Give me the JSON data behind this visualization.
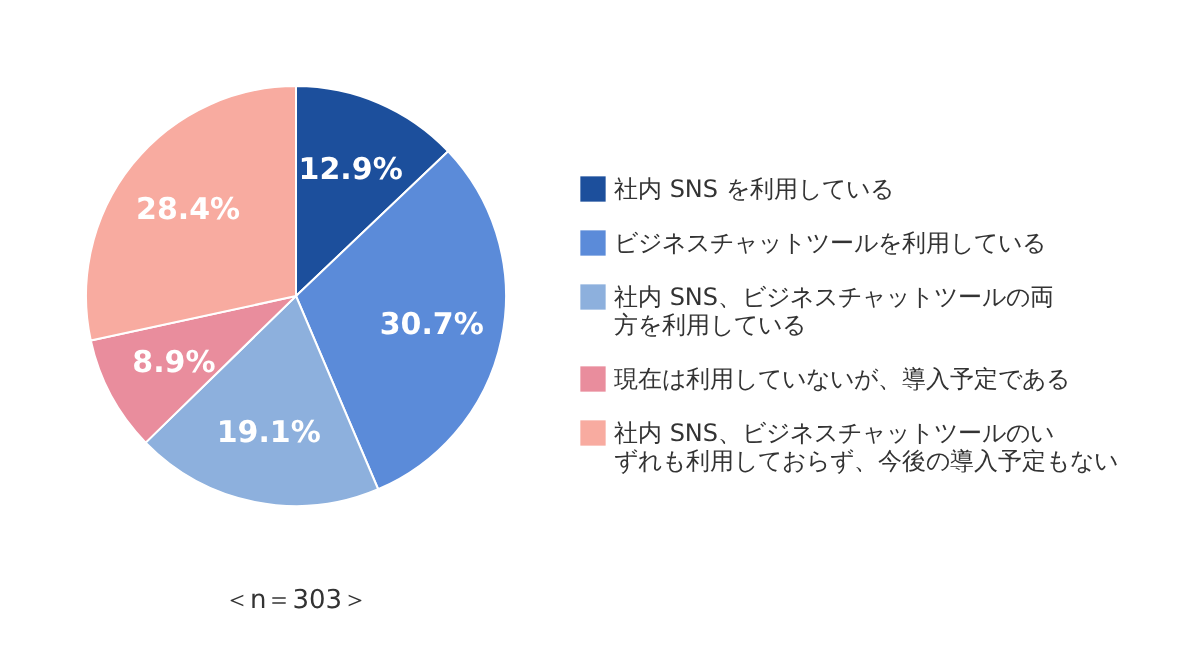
{
  "chart_data": {
    "type": "pie",
    "categories": [
      "社内 SNS を利用している",
      "ビジネスチャットツールを利用している",
      "社内 SNS、ビジネスチャットツールの両方を利用している",
      "現在は利用していないが、導入予定である",
      "社内 SNS、ビジネスチャットツールのいずれも利用しておらず、今後の導入予定もない"
    ],
    "values": [
      12.9,
      30.7,
      19.1,
      8.9,
      28.4
    ],
    "value_labels": [
      "12.9%",
      "30.7%",
      "19.1%",
      "8.9%",
      "28.4%"
    ],
    "colors": [
      "#1c4f9c",
      "#5b8bd9",
      "#8db0dd",
      "#e98d9d",
      "#f8aba0"
    ],
    "legend": "right",
    "annotations": [
      "＜n＝303＞"
    ]
  }
}
